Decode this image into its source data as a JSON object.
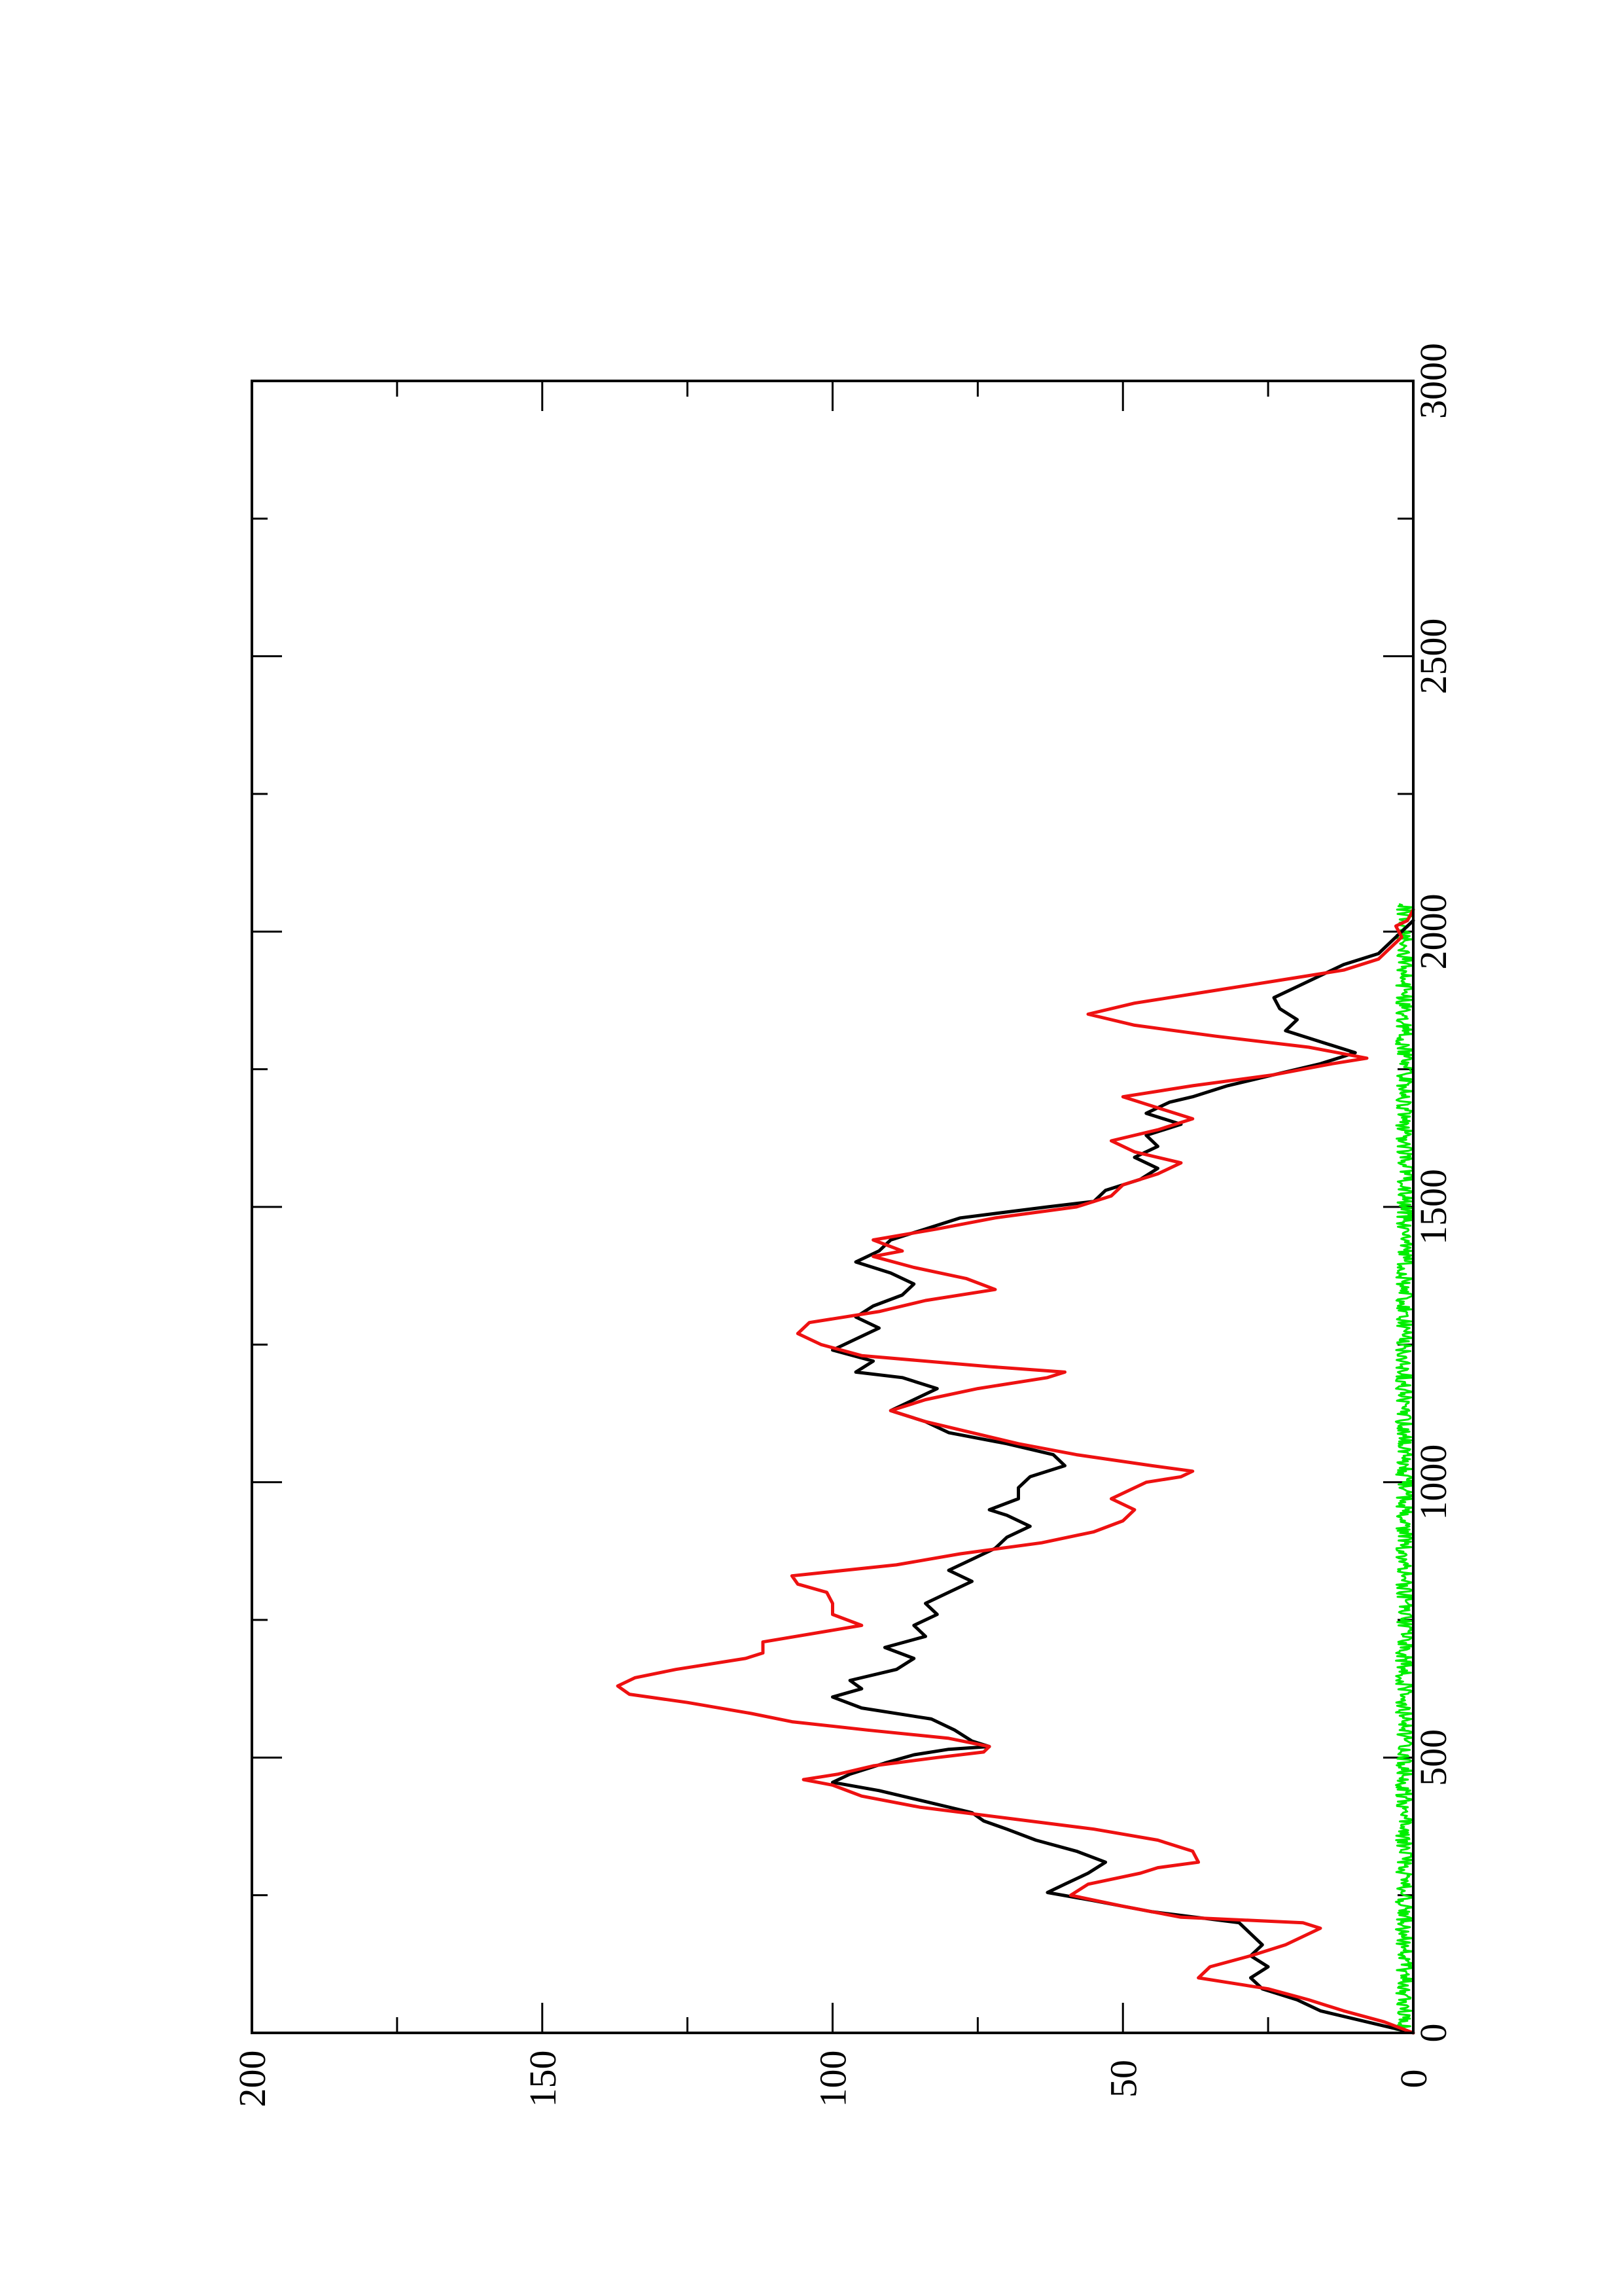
{
  "chart_data": {
    "type": "line",
    "title": "",
    "xlabel": "",
    "ylabel": "",
    "orientation": "rotated-90-ccw",
    "xlim": [
      0,
      3000
    ],
    "ylim": [
      0,
      200
    ],
    "x_ticks": [
      0,
      500,
      1000,
      1500,
      2000,
      2500,
      3000
    ],
    "y_ticks": [
      0,
      50,
      100,
      150,
      200
    ],
    "grid": false,
    "legend": "none",
    "series": [
      {
        "color": "#000000",
        "points": [
          [
            0,
            0
          ],
          [
            20,
            8
          ],
          [
            40,
            16
          ],
          [
            60,
            20
          ],
          [
            80,
            26
          ],
          [
            100,
            28
          ],
          [
            120,
            25
          ],
          [
            140,
            28
          ],
          [
            160,
            26
          ],
          [
            180,
            28
          ],
          [
            200,
            30
          ],
          [
            220,
            45
          ],
          [
            240,
            55
          ],
          [
            255,
            63
          ],
          [
            270,
            60
          ],
          [
            290,
            56
          ],
          [
            310,
            53
          ],
          [
            330,
            58
          ],
          [
            350,
            65
          ],
          [
            370,
            70
          ],
          [
            385,
            74
          ],
          [
            400,
            76
          ],
          [
            420,
            84
          ],
          [
            440,
            92
          ],
          [
            455,
            100
          ],
          [
            470,
            97
          ],
          [
            490,
            91
          ],
          [
            505,
            86
          ],
          [
            515,
            80
          ],
          [
            520,
            73
          ],
          [
            530,
            76
          ],
          [
            550,
            79
          ],
          [
            570,
            83
          ],
          [
            590,
            95
          ],
          [
            610,
            100
          ],
          [
            625,
            95
          ],
          [
            640,
            97
          ],
          [
            660,
            89
          ],
          [
            680,
            86
          ],
          [
            700,
            91
          ],
          [
            720,
            84
          ],
          [
            740,
            86
          ],
          [
            760,
            82
          ],
          [
            780,
            84
          ],
          [
            800,
            80
          ],
          [
            820,
            76
          ],
          [
            840,
            80
          ],
          [
            860,
            76
          ],
          [
            880,
            72
          ],
          [
            900,
            70
          ],
          [
            920,
            66
          ],
          [
            940,
            70
          ],
          [
            950,
            73
          ],
          [
            970,
            68
          ],
          [
            990,
            68
          ],
          [
            1010,
            66
          ],
          [
            1030,
            60
          ],
          [
            1050,
            62
          ],
          [
            1070,
            70
          ],
          [
            1090,
            80
          ],
          [
            1110,
            84
          ],
          [
            1130,
            90
          ],
          [
            1150,
            86
          ],
          [
            1170,
            82
          ],
          [
            1190,
            88
          ],
          [
            1200,
            96
          ],
          [
            1220,
            93
          ],
          [
            1240,
            100
          ],
          [
            1260,
            96
          ],
          [
            1280,
            92
          ],
          [
            1300,
            96
          ],
          [
            1320,
            93
          ],
          [
            1340,
            88
          ],
          [
            1360,
            86
          ],
          [
            1380,
            90
          ],
          [
            1400,
            96
          ],
          [
            1420,
            92
          ],
          [
            1440,
            90
          ],
          [
            1460,
            84
          ],
          [
            1480,
            78
          ],
          [
            1500,
            63
          ],
          [
            1510,
            55
          ],
          [
            1530,
            53
          ],
          [
            1550,
            47
          ],
          [
            1570,
            44
          ],
          [
            1590,
            48
          ],
          [
            1610,
            44
          ],
          [
            1630,
            46
          ],
          [
            1650,
            40
          ],
          [
            1670,
            46
          ],
          [
            1690,
            42
          ],
          [
            1700,
            38
          ],
          [
            1720,
            32
          ],
          [
            1740,
            24
          ],
          [
            1760,
            16
          ],
          [
            1780,
            10
          ],
          [
            1800,
            16
          ],
          [
            1820,
            22
          ],
          [
            1840,
            20
          ],
          [
            1860,
            23
          ],
          [
            1880,
            24
          ],
          [
            1900,
            20
          ],
          [
            1920,
            16
          ],
          [
            1940,
            12
          ],
          [
            1960,
            6
          ],
          [
            1980,
            4
          ],
          [
            2000,
            2
          ],
          [
            2020,
            0
          ]
        ]
      },
      {
        "color": "#ee1111",
        "points": [
          [
            0,
            0
          ],
          [
            20,
            5
          ],
          [
            40,
            12
          ],
          [
            60,
            18
          ],
          [
            80,
            25
          ],
          [
            100,
            37
          ],
          [
            120,
            35
          ],
          [
            140,
            28
          ],
          [
            160,
            22
          ],
          [
            175,
            19
          ],
          [
            190,
            16
          ],
          [
            200,
            19
          ],
          [
            210,
            40
          ],
          [
            230,
            50
          ],
          [
            250,
            59
          ],
          [
            270,
            56
          ],
          [
            290,
            47
          ],
          [
            300,
            44
          ],
          [
            310,
            37
          ],
          [
            330,
            38
          ],
          [
            350,
            44
          ],
          [
            370,
            55
          ],
          [
            390,
            70
          ],
          [
            410,
            85
          ],
          [
            430,
            95
          ],
          [
            450,
            100
          ],
          [
            460,
            105
          ],
          [
            470,
            99
          ],
          [
            485,
            93
          ],
          [
            500,
            82
          ],
          [
            510,
            74
          ],
          [
            520,
            73
          ],
          [
            535,
            80
          ],
          [
            550,
            94
          ],
          [
            565,
            107
          ],
          [
            580,
            114
          ],
          [
            600,
            125
          ],
          [
            615,
            135
          ],
          [
            630,
            137
          ],
          [
            645,
            134
          ],
          [
            660,
            127
          ],
          [
            680,
            115
          ],
          [
            690,
            112
          ],
          [
            710,
            112
          ],
          [
            740,
            95
          ],
          [
            760,
            100
          ],
          [
            780,
            100
          ],
          [
            800,
            101
          ],
          [
            815,
            106
          ],
          [
            830,
            107
          ],
          [
            850,
            89
          ],
          [
            870,
            78
          ],
          [
            890,
            64
          ],
          [
            910,
            55
          ],
          [
            930,
            50
          ],
          [
            950,
            48
          ],
          [
            970,
            52
          ],
          [
            990,
            48
          ],
          [
            1000,
            46
          ],
          [
            1010,
            40
          ],
          [
            1020,
            38
          ],
          [
            1030,
            45
          ],
          [
            1050,
            58
          ],
          [
            1070,
            68
          ],
          [
            1090,
            76
          ],
          [
            1110,
            84
          ],
          [
            1130,
            90
          ],
          [
            1150,
            84
          ],
          [
            1170,
            75
          ],
          [
            1190,
            63
          ],
          [
            1200,
            60
          ],
          [
            1210,
            73
          ],
          [
            1230,
            95
          ],
          [
            1250,
            102
          ],
          [
            1270,
            106
          ],
          [
            1290,
            104
          ],
          [
            1310,
            92
          ],
          [
            1330,
            84
          ],
          [
            1350,
            72
          ],
          [
            1370,
            77
          ],
          [
            1390,
            86
          ],
          [
            1410,
            93
          ],
          [
            1420,
            88
          ],
          [
            1440,
            93
          ],
          [
            1460,
            82
          ],
          [
            1480,
            72
          ],
          [
            1500,
            58
          ],
          [
            1520,
            52
          ],
          [
            1540,
            50
          ],
          [
            1560,
            44
          ],
          [
            1580,
            40
          ],
          [
            1600,
            48
          ],
          [
            1620,
            52
          ],
          [
            1640,
            44
          ],
          [
            1660,
            38
          ],
          [
            1680,
            44
          ],
          [
            1700,
            50
          ],
          [
            1720,
            38
          ],
          [
            1740,
            24
          ],
          [
            1760,
            14
          ],
          [
            1770,
            8
          ],
          [
            1790,
            18
          ],
          [
            1810,
            34
          ],
          [
            1830,
            48
          ],
          [
            1850,
            56
          ],
          [
            1870,
            48
          ],
          [
            1890,
            36
          ],
          [
            1910,
            24
          ],
          [
            1930,
            12
          ],
          [
            1950,
            6
          ],
          [
            1970,
            4
          ],
          [
            1990,
            2
          ],
          [
            2010,
            3
          ],
          [
            2020,
            1
          ],
          [
            2040,
            0
          ]
        ]
      },
      {
        "color": "#00ee00",
        "noise_band": [
          0,
          3
        ],
        "x_range": [
          0,
          2050
        ]
      }
    ]
  }
}
